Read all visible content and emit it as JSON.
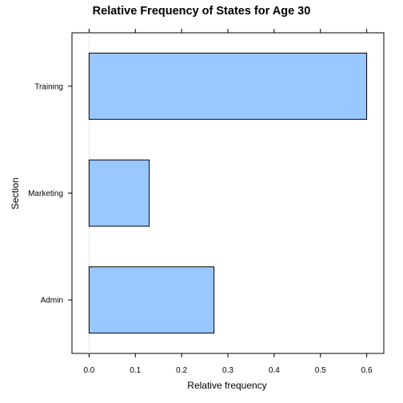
{
  "chart_data": {
    "type": "bar",
    "orientation": "horizontal",
    "title": "Relative Frequency of States for Age 30",
    "xlabel": "Relative frequency",
    "ylabel": "Section",
    "categories": [
      "Admin",
      "Marketing",
      "Training"
    ],
    "values": [
      0.27,
      0.13,
      0.6
    ],
    "xlim": [
      -0.037,
      0.637
    ],
    "xticks": [
      "0.0",
      "0.1",
      "0.2",
      "0.3",
      "0.4",
      "0.5",
      "0.6"
    ],
    "grid": false,
    "bar_color": "#99c7ff",
    "bar_edge_color": "#000000",
    "reference_line_color": "#e6e6e6"
  }
}
